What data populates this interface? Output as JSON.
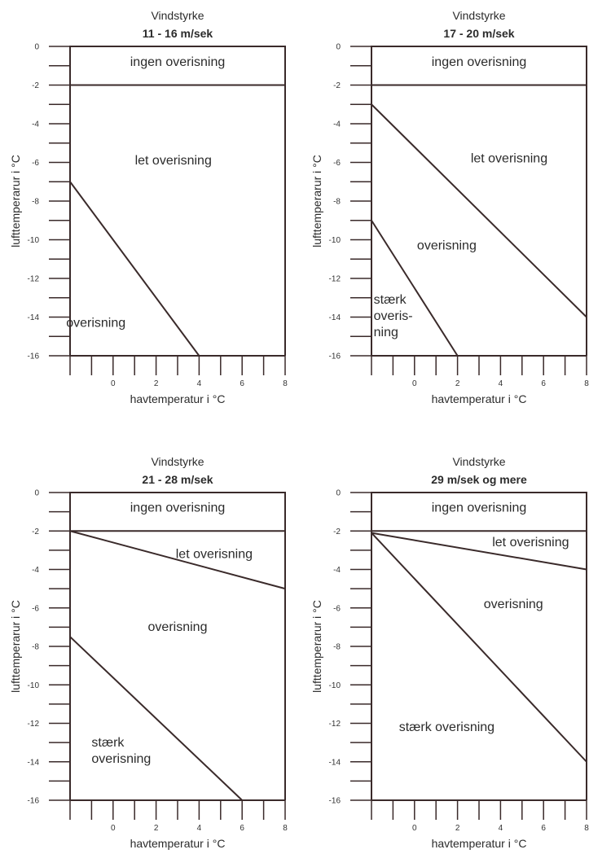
{
  "chart_data": [
    {
      "type": "line",
      "supertitle": "Vindstyrke",
      "title": "11 - 16 m/sek",
      "xlabel": "havtemperatur i °C",
      "ylabel": "lufttemperarur i °C",
      "xlim": [
        -2,
        8
      ],
      "ylim": [
        -16,
        0
      ],
      "xticks": [
        0,
        2,
        4,
        6,
        8
      ],
      "yticks": [
        0,
        -2,
        -4,
        -6,
        -8,
        -10,
        -12,
        -14,
        -16
      ],
      "hlines": [
        -2
      ],
      "lines": [
        {
          "x": [
            -2,
            4
          ],
          "y": [
            -7,
            -16
          ]
        }
      ],
      "regions": [
        {
          "lines": [
            "ingen overisning"
          ],
          "x": 3,
          "y": -1
        },
        {
          "lines": [
            "let overisning"
          ],
          "x": 2.8,
          "y": -6.1
        },
        {
          "lines": [
            "overisning"
          ],
          "x": -0.8,
          "y": -14.5
        }
      ]
    },
    {
      "type": "line",
      "supertitle": "Vindstyrke",
      "title": "17 - 20 m/sek",
      "xlabel": "havtemperatur i °C",
      "ylabel": "lufttemperarur i °C",
      "xlim": [
        -2,
        8
      ],
      "ylim": [
        -16,
        0
      ],
      "xticks": [
        0,
        2,
        4,
        6,
        8
      ],
      "yticks": [
        0,
        -2,
        -4,
        -6,
        -8,
        -10,
        -12,
        -14,
        -16
      ],
      "hlines": [
        -2
      ],
      "lines": [
        {
          "x": [
            -2,
            8
          ],
          "y": [
            -3,
            -14
          ]
        },
        {
          "x": [
            -2,
            2
          ],
          "y": [
            -9,
            -16
          ]
        }
      ],
      "regions": [
        {
          "lines": [
            "ingen overisning"
          ],
          "x": 3,
          "y": -1
        },
        {
          "lines": [
            "let overisning"
          ],
          "x": 4.4,
          "y": -6
        },
        {
          "lines": [
            "overisning"
          ],
          "x": 1.5,
          "y": -10.5
        },
        {
          "lines": [
            "stærk",
            "overis-",
            "ning"
          ],
          "x": -1.9,
          "y": -13.3
        }
      ]
    },
    {
      "type": "line",
      "supertitle": "Vindstyrke",
      "title": "21 - 28 m/sek",
      "xlabel": "havtemperatur i °C",
      "ylabel": "lufttemperarur i °C",
      "xlim": [
        -2,
        8
      ],
      "ylim": [
        -16,
        0
      ],
      "xticks": [
        0,
        2,
        4,
        6,
        8
      ],
      "yticks": [
        0,
        -2,
        -4,
        -6,
        -8,
        -10,
        -12,
        -14,
        -16
      ],
      "hlines": [
        -2
      ],
      "lines": [
        {
          "x": [
            -2,
            8
          ],
          "y": [
            -2,
            -5
          ]
        },
        {
          "x": [
            -2,
            6
          ],
          "y": [
            -7.5,
            -16
          ]
        }
      ],
      "regions": [
        {
          "lines": [
            "ingen overisning"
          ],
          "x": 3,
          "y": -1
        },
        {
          "lines": [
            "let overisning"
          ],
          "x": 4.7,
          "y": -3.4
        },
        {
          "lines": [
            "overisning"
          ],
          "x": 3,
          "y": -7.2
        },
        {
          "lines": [
            "stærk",
            "overisning"
          ],
          "x": -1,
          "y": -13.2
        }
      ]
    },
    {
      "type": "line",
      "supertitle": "Vindstyrke",
      "title": "29 m/sek og mere",
      "xlabel": "havtemperatur i °C",
      "ylabel": "lufttemperarur i °C",
      "xlim": [
        -2,
        8
      ],
      "ylim": [
        -16,
        0
      ],
      "xticks": [
        0,
        2,
        4,
        6,
        8
      ],
      "yticks": [
        0,
        -2,
        -4,
        -6,
        -8,
        -10,
        -12,
        -14,
        -16
      ],
      "hlines": [
        -2
      ],
      "lines": [
        {
          "x": [
            -2,
            8
          ],
          "y": [
            -2.1,
            -4
          ]
        },
        {
          "x": [
            -2,
            8
          ],
          "y": [
            -2.1,
            -14
          ]
        }
      ],
      "regions": [
        {
          "lines": [
            "ingen overisning"
          ],
          "x": 3,
          "y": -1
        },
        {
          "lines": [
            "let overisning"
          ],
          "x": 5.4,
          "y": -2.8
        },
        {
          "lines": [
            "overisning"
          ],
          "x": 4.6,
          "y": -6
        },
        {
          "lines": [
            "stærk overisning"
          ],
          "x": 1.5,
          "y": -12.4
        }
      ]
    }
  ]
}
